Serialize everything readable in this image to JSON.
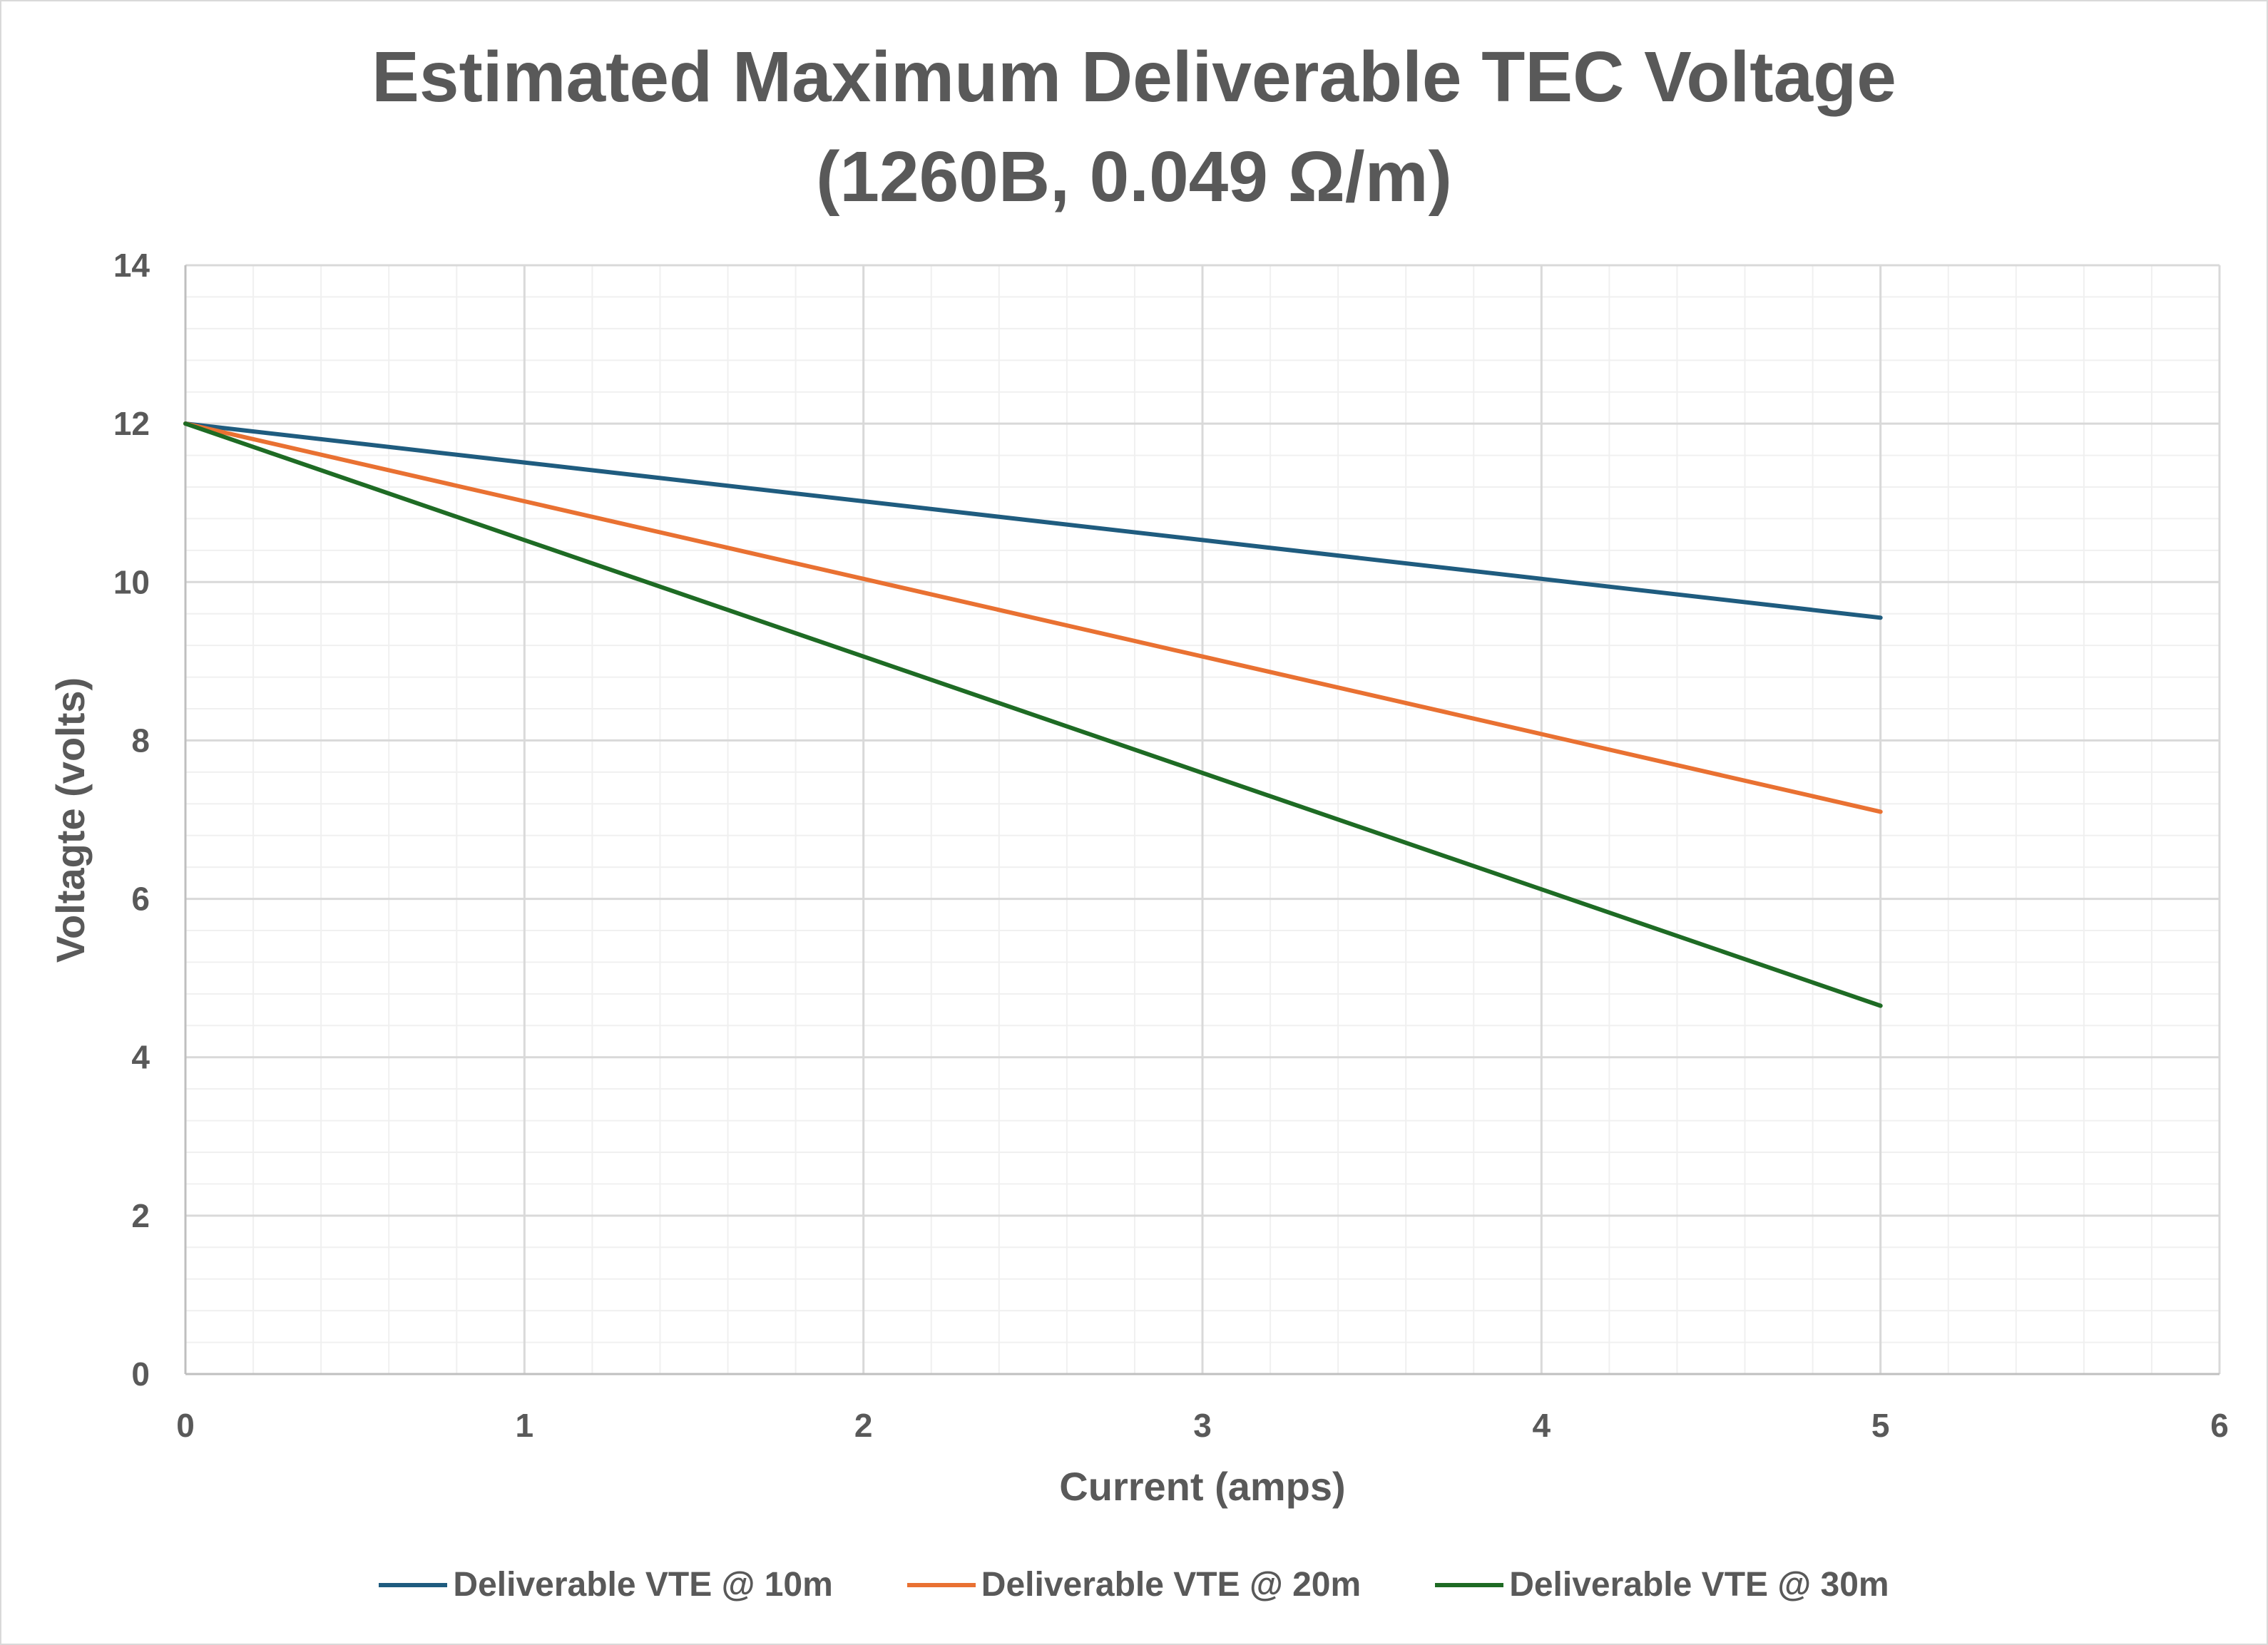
{
  "chart_data": {
    "type": "line",
    "title": "Estimated Maximum Deliverable TEC Voltage",
    "subtitle": "(1260B, 0.049 Ω/m)",
    "xlabel": "Current (amps)",
    "ylabel": "Voltagte (volts)",
    "xlim": [
      0,
      6
    ],
    "ylim": [
      0,
      14
    ],
    "x_ticks": [
      "0",
      "1",
      "2",
      "3",
      "4",
      "5",
      "6"
    ],
    "y_ticks": [
      "0",
      "2",
      "4",
      "6",
      "8",
      "10",
      "12",
      "14"
    ],
    "grid": true,
    "legend_position": "bottom",
    "x": [
      0,
      1,
      2,
      3,
      4,
      5
    ],
    "series": [
      {
        "name": "Deliverable VTE @ 10m",
        "color": "#1f5c7f",
        "values": [
          12.0,
          11.51,
          11.02,
          10.53,
          10.04,
          9.55
        ]
      },
      {
        "name": "Deliverable VTE @ 20m",
        "color": "#e97132",
        "values": [
          12.0,
          11.02,
          10.04,
          9.06,
          8.08,
          7.1
        ]
      },
      {
        "name": "Deliverable VTE @ 30m",
        "color": "#1e6b24",
        "values": [
          12.0,
          10.53,
          9.06,
          7.59,
          6.12,
          4.65
        ]
      }
    ]
  }
}
